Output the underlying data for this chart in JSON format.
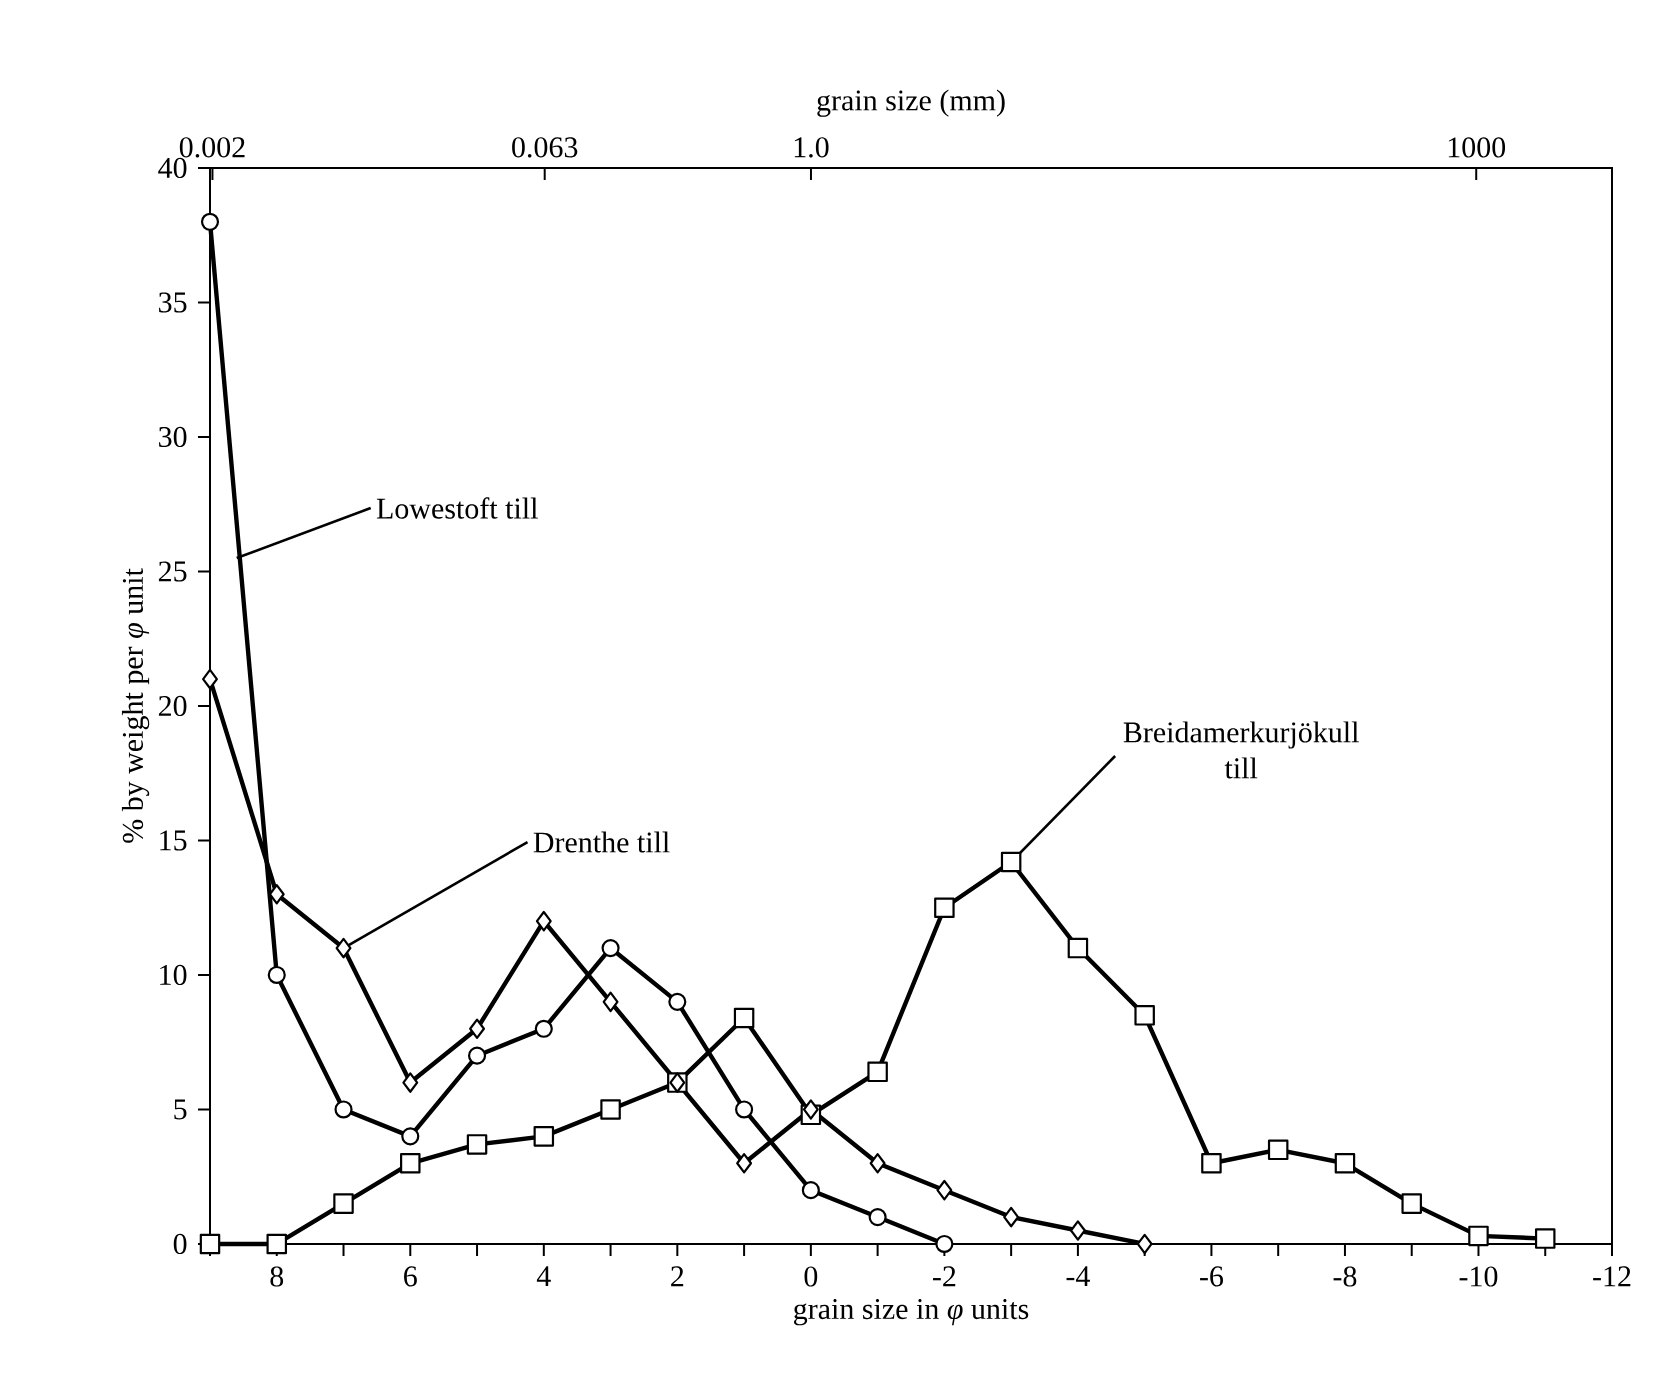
{
  "chart_data": {
    "type": "line",
    "xlabel": "grain size in *φ* units",
    "ylabel": "% by weight per *φ* unit",
    "x2label": "grain size (mm)",
    "xlim": [
      9,
      -12
    ],
    "xticks": [
      {
        "value": 9,
        "label": null
      },
      8,
      {
        "value": 7,
        "label": null
      },
      6,
      {
        "value": 5,
        "label": null
      },
      4,
      {
        "value": 3,
        "label": null
      },
      2,
      {
        "value": 1,
        "label": null
      },
      0,
      {
        "value": -1,
        "label": null
      },
      -2,
      {
        "value": -3,
        "label": null
      },
      -4,
      {
        "value": -5,
        "label": null
      },
      -6,
      {
        "value": -7,
        "label": null
      },
      -8,
      {
        "value": -9,
        "label": null
      },
      -10,
      {
        "value": -11,
        "label": null
      },
      -12
    ],
    "x2lim": [
      0.00195,
      4096
    ],
    "x2ticks": [
      0.002,
      0.063,
      {
        "value": 1,
        "label": "1.0"
      },
      1000
    ],
    "log": "x2",
    "ylim": [
      0,
      40
    ],
    "yticks": [
      0,
      5,
      10,
      15,
      20,
      25,
      30,
      35,
      40
    ],
    "line_style": "solid",
    "series": [
      {
        "color": "#000000",
        "marker": "circle",
        "x": [
          9,
          8,
          7,
          6,
          5,
          4,
          3,
          2,
          1,
          0,
          -1,
          -2
        ],
        "values": [
          38,
          10,
          5,
          4,
          7,
          8,
          11,
          9,
          5,
          2,
          1,
          0
        ]
      },
      {
        "color": "#000000",
        "marker": "diamond",
        "x": [
          9,
          8,
          7,
          6,
          5,
          4,
          3,
          2,
          1,
          0,
          -1,
          -2,
          -3,
          -4,
          -5
        ],
        "values": [
          21,
          13,
          11,
          6,
          8,
          12,
          9,
          6,
          3,
          5,
          3,
          2,
          1,
          0.5,
          0
        ]
      },
      {
        "color": "#000000",
        "marker": "square",
        "x": [
          9,
          8,
          7,
          6,
          5,
          4,
          3,
          2,
          1,
          0,
          -1,
          -2,
          -3,
          -4,
          -5,
          -6,
          -7,
          -8,
          -9,
          -10,
          -11
        ],
        "values": [
          0,
          0,
          1.5,
          3,
          3.7,
          4,
          5,
          6,
          8.4,
          4.8,
          6.4,
          12.5,
          14.2,
          11,
          8.5,
          3,
          3.5,
          3,
          1.5,
          0.3,
          0.2
        ]
      }
    ],
    "annotations": [
      {
        "text": "Lowestoft till",
        "x": 8.6,
        "y": 25.5
      },
      {
        "text": "Drenthe till",
        "x": 7,
        "y": 11
      },
      {
        "text": "Breidamerkurjökull till",
        "x": -3,
        "y": 14.2
      }
    ]
  }
}
